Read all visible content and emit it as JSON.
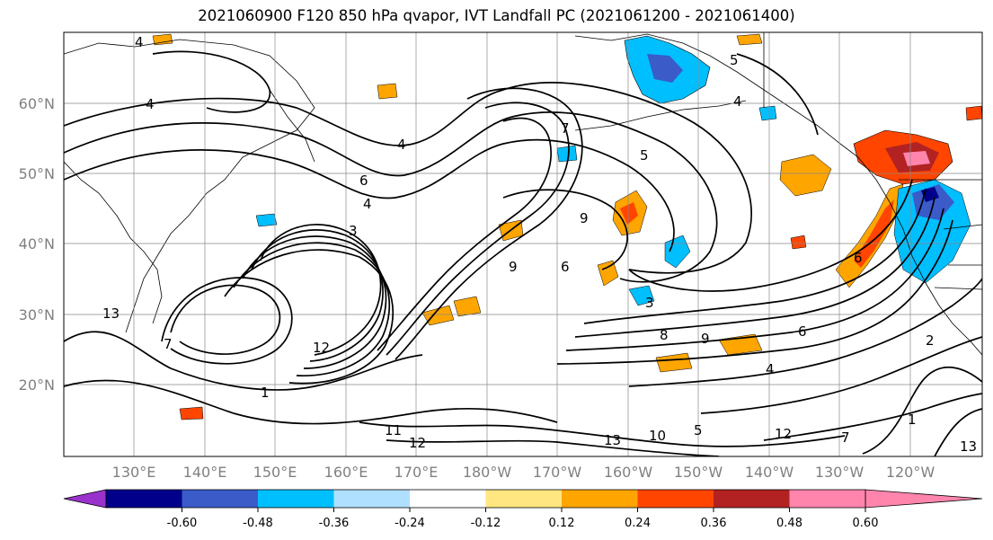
{
  "title": "2021060900 F120 850 hPa qvapor, IVT Landfall PC (2021061200 - 2021061400)",
  "lat_labels": [
    "60°N",
    "50°N",
    "40°N",
    "30°N",
    "20°N"
  ],
  "lon_labels": [
    "130°E",
    "140°E",
    "150°E",
    "160°E",
    "170°E",
    "180°W",
    "170°W",
    "160°W",
    "150°W",
    "140°W",
    "130°W",
    "120°W"
  ],
  "colorbar": {
    "colors": [
      "#9932cc",
      "#00008b",
      "#3a5bc8",
      "#00bfff",
      "#b0e0ff",
      "#ffffff",
      "#ffe680",
      "#ffa500",
      "#ff4500",
      "#b22222",
      "#ff85ad"
    ],
    "tick_labels": [
      "-0.60",
      "-0.48",
      "-0.36",
      "-0.24",
      "-0.12",
      "0.12",
      "0.24",
      "0.36",
      "0.48",
      "0.60"
    ]
  },
  "contour_labels": [
    "4",
    "4",
    "4",
    "4",
    "5",
    "5",
    "7",
    "6",
    "4",
    "3",
    "9",
    "6",
    "9",
    "3",
    "8",
    "9",
    "6",
    "4",
    "12",
    "1",
    "11",
    "12",
    "13",
    "10",
    "5",
    "12",
    "7",
    "1",
    "2",
    "13",
    "7",
    "6",
    "13"
  ]
}
